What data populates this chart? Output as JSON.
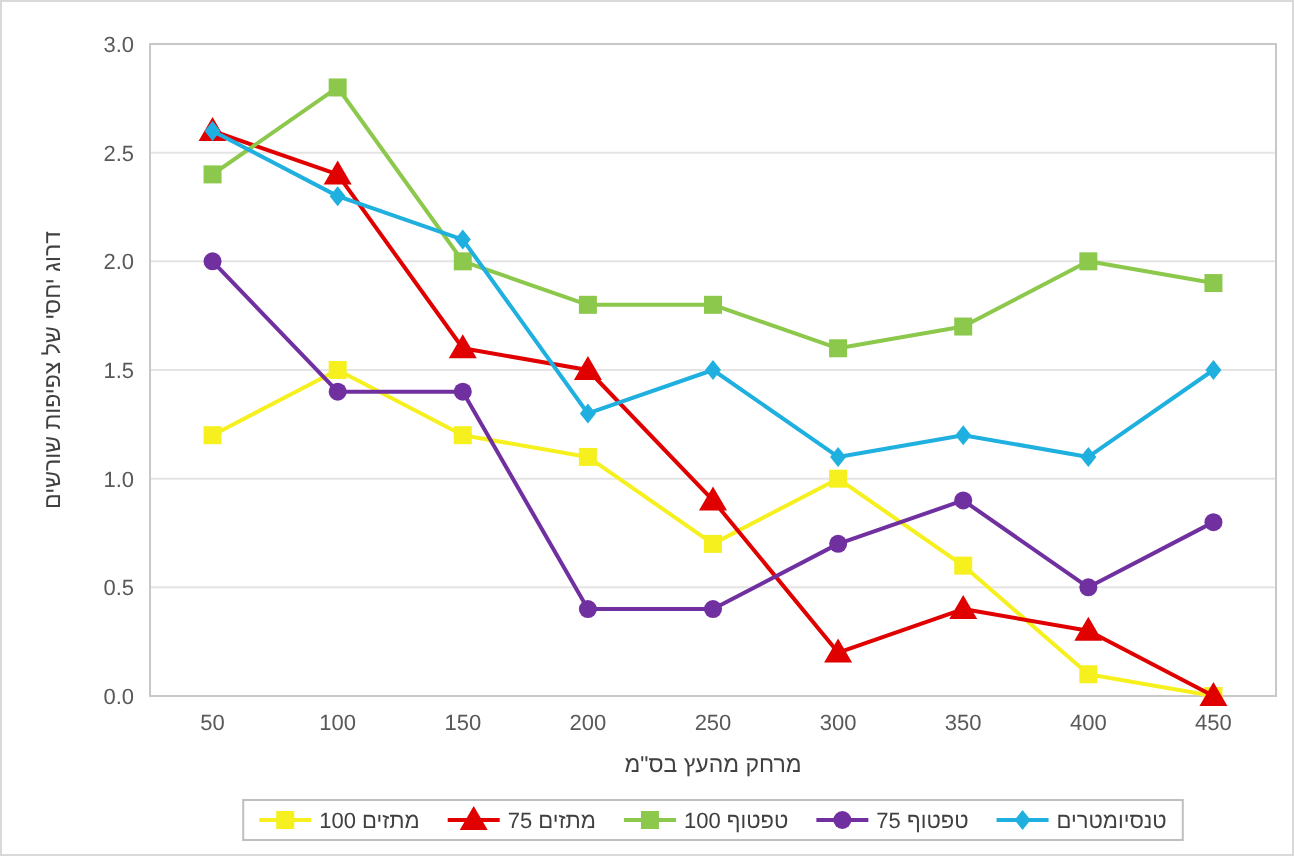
{
  "chart_data": {
    "type": "line",
    "xlabel": "מרחק מהעץ בס\"מ",
    "ylabel": "דרוג יחסי של צפיפות שורשים",
    "categories": [
      "50",
      "100",
      "150",
      "200",
      "250",
      "300",
      "350",
      "400",
      "450"
    ],
    "series": [
      {
        "name": "מתזים 100",
        "color": "#f5f01e",
        "marker": "square",
        "values": [
          1.2,
          1.5,
          1.2,
          1.1,
          0.7,
          1.0,
          0.6,
          0.1,
          0.0
        ]
      },
      {
        "name": "מתזים 75",
        "color": "#e00000",
        "marker": "triangle",
        "values": [
          2.6,
          2.4,
          1.6,
          1.5,
          0.9,
          0.2,
          0.4,
          0.3,
          0.0
        ]
      },
      {
        "name": "טפטוף 100",
        "color": "#8cc84b",
        "marker": "square",
        "values": [
          2.4,
          2.8,
          2.0,
          1.8,
          1.8,
          1.6,
          1.7,
          2.0,
          1.9
        ]
      },
      {
        "name": "טפטוף 75",
        "color": "#7030a0",
        "marker": "circle",
        "values": [
          2.0,
          1.4,
          1.4,
          0.4,
          0.4,
          0.7,
          0.9,
          0.5,
          0.8
        ]
      },
      {
        "name": "טנסיומטרים",
        "color": "#1fb0e0",
        "marker": "diamond",
        "values": [
          2.6,
          2.3,
          2.1,
          1.3,
          1.5,
          1.1,
          1.2,
          1.1,
          1.5
        ]
      }
    ],
    "ylim": [
      0,
      3.0
    ],
    "yticks": [
      {
        "value": 0,
        "label": "0.0"
      },
      {
        "value": 0.5,
        "label": "0.5"
      },
      {
        "value": 1,
        "label": "1.0"
      },
      {
        "value": 1.5,
        "label": "1.5"
      },
      {
        "value": 2,
        "label": "2.0"
      },
      {
        "value": 2.5,
        "label": "2.5"
      },
      {
        "value": 3,
        "label": "3.0"
      }
    ],
    "grid": "y",
    "legend": "bottom",
    "line_style": "solid"
  }
}
